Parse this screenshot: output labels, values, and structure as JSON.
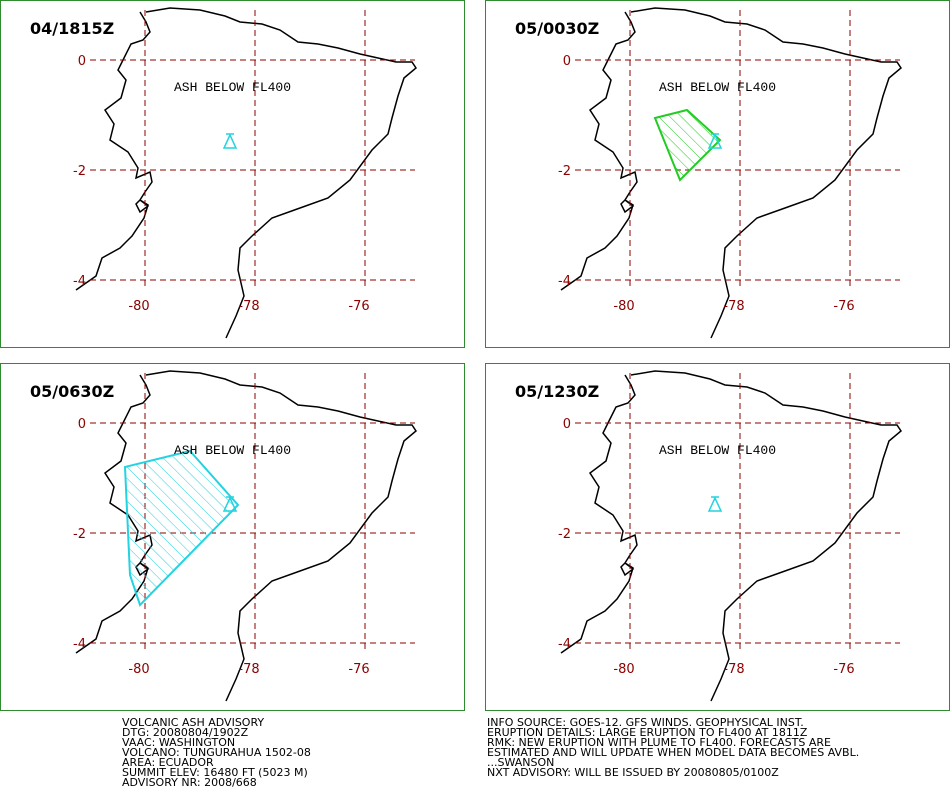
{
  "panels": [
    {
      "time": "04/1815Z",
      "note": "ASH BELOW FL400"
    },
    {
      "time": "05/0030Z",
      "note": "ASH BELOW FL400"
    },
    {
      "time": "05/0630Z",
      "note": "ASH BELOW FL400"
    },
    {
      "time": "05/1230Z",
      "note": "ASH BELOW FL400"
    }
  ],
  "lat_ticks": [
    0,
    -2,
    -4
  ],
  "lon_ticks": [
    -80,
    -78,
    -76
  ],
  "advisory": {
    "left": [
      "VOLCANIC ASH ADVISORY",
      "DTG: 20080804/1902Z",
      "VAAC: WASHINGTON",
      "VOLCANO: TUNGURAHUA 1502-08",
      "AREA: ECUADOR",
      "SUMMIT ELEV: 16480 FT (5023 M)",
      "ADVISORY NR: 2008/668"
    ],
    "right": [
      "INFO SOURCE: GOES-12. GFS WINDS. GEOPHYSICAL INST.",
      "ERUPTION DETAILS: LARGE ERUPTION TO FL400 AT 1811Z",
      "RMK: NEW ERUPTION WITH PLUME TO FL400. FORECASTS ARE",
      "ESTIMATED AND WILL UPDATE WHEN MODEL DATA BECOMES AVBL.",
      "...SWANSON",
      "NXT ADVISORY: WILL BE ISSUED BY 20080805/0100Z"
    ]
  }
}
